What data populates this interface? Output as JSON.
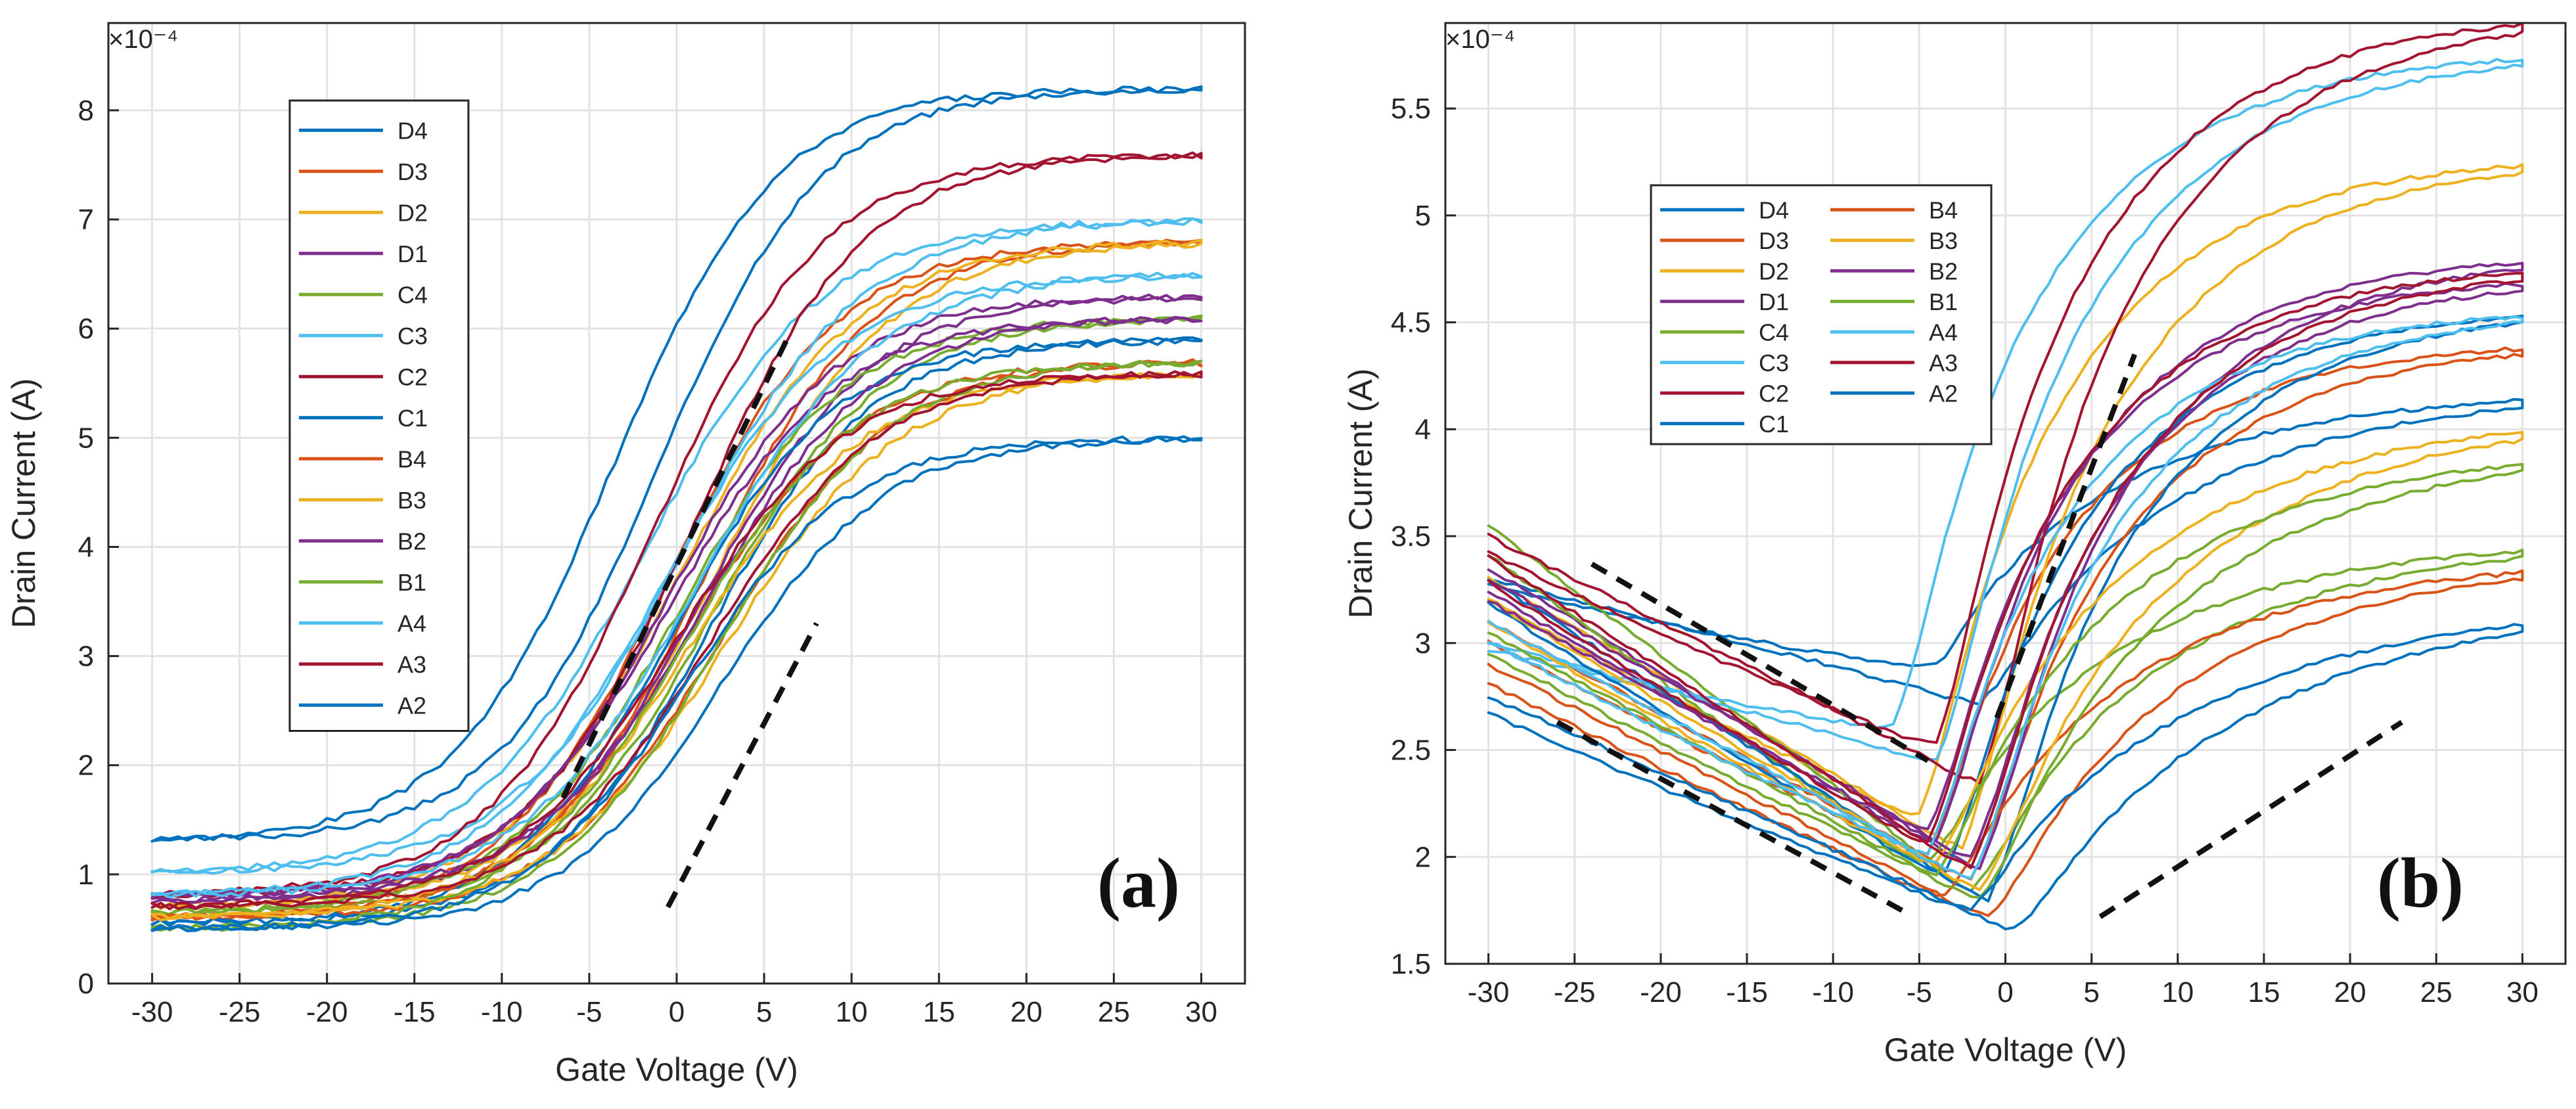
{
  "colors": [
    "#0072BD",
    "#D95319",
    "#EDB120",
    "#7E2F8E",
    "#77AC30",
    "#4DBEEE",
    "#A2142F"
  ],
  "chart_data": [
    {
      "type": "line",
      "panel_label": "(a)",
      "xlabel": "Gate Voltage (V)",
      "ylabel": "Drain Current (A)",
      "exponent": "×10⁻⁴",
      "xlim": [
        -32.5,
        32.5
      ],
      "ylim": [
        0,
        8.8
      ],
      "xticks": [
        -30,
        -25,
        -20,
        -15,
        -10,
        -5,
        0,
        5,
        10,
        15,
        20,
        25,
        30
      ],
      "yticks": [
        0,
        1,
        2,
        3,
        4,
        5,
        6,
        7,
        8
      ],
      "grid": true,
      "legend_position": "top-left",
      "legend_columns": 1,
      "series": [
        {
          "name": "D4",
          "lo": 1.3,
          "hi": 8.2,
          "vm": -1,
          "w": 4.6,
          "d": 2.6
        },
        {
          "name": "D3",
          "lo": 0.6,
          "hi": 6.8,
          "vm": 1.5,
          "w": 4.8,
          "d": 2.0
        },
        {
          "name": "D2",
          "lo": 0.7,
          "hi": 6.8,
          "vm": 2.2,
          "w": 5.0,
          "d": 2.0
        },
        {
          "name": "D1",
          "lo": 0.75,
          "hi": 6.3,
          "vm": 1.5,
          "w": 4.8,
          "d": 2.0
        },
        {
          "name": "C4",
          "lo": 0.65,
          "hi": 6.1,
          "vm": 2.0,
          "w": 4.8,
          "d": 2.0
        },
        {
          "name": "C3",
          "lo": 1.0,
          "hi": 7.0,
          "vm": 0.5,
          "w": 5.0,
          "d": 2.2
        },
        {
          "name": "C2",
          "lo": 0.8,
          "hi": 7.6,
          "vm": 1.0,
          "w": 4.8,
          "d": 2.2
        },
        {
          "name": "C1",
          "lo": 0.55,
          "hi": 5.9,
          "vm": 1.8,
          "w": 4.6,
          "d": 2.0
        },
        {
          "name": "B4",
          "lo": 0.6,
          "hi": 5.7,
          "vm": 2.5,
          "w": 4.8,
          "d": 2.0
        },
        {
          "name": "B3",
          "lo": 0.6,
          "hi": 5.6,
          "vm": 2.8,
          "w": 5.0,
          "d": 2.0
        },
        {
          "name": "B2",
          "lo": 0.8,
          "hi": 6.1,
          "vm": 1.6,
          "w": 4.8,
          "d": 2.0
        },
        {
          "name": "B1",
          "lo": 0.5,
          "hi": 5.7,
          "vm": 2.4,
          "w": 4.8,
          "d": 2.0
        },
        {
          "name": "A4",
          "lo": 0.8,
          "hi": 6.5,
          "vm": 1.2,
          "w": 5.0,
          "d": 2.0
        },
        {
          "name": "A3",
          "lo": 0.7,
          "hi": 5.6,
          "vm": 2.0,
          "w": 4.8,
          "d": 2.0
        },
        {
          "name": "A2",
          "lo": 0.5,
          "hi": 5.0,
          "vm": 2.6,
          "w": 4.6,
          "d": 2.0
        }
      ],
      "guide_lines": [
        {
          "x1": -6.5,
          "y1": 1.7,
          "x2": 6.3,
          "y2": 5.9
        },
        {
          "x1": -0.5,
          "y1": 0.7,
          "x2": 8.0,
          "y2": 3.3
        }
      ]
    },
    {
      "type": "line",
      "panel_label": "(b)",
      "xlabel": "Gate Voltage (V)",
      "ylabel": "Drain Current (A)",
      "exponent": "×10⁻⁴",
      "xlim": [
        -32.5,
        32.5
      ],
      "ylim": [
        1.5,
        5.9
      ],
      "xticks": [
        -30,
        -25,
        -20,
        -15,
        -10,
        -5,
        0,
        5,
        10,
        15,
        20,
        25,
        30
      ],
      "yticks": [
        1.5,
        2,
        2.5,
        3,
        3.5,
        4,
        4.5,
        5,
        5.5
      ],
      "grid": true,
      "legend_position": "top-left",
      "legend_columns": 2,
      "series": [
        {
          "name": "D4",
          "left": 3.3,
          "right": 4.1,
          "vmin": -1.5,
          "ymin": 2.72,
          "w": 5,
          "d": 0.22
        },
        {
          "name": "D3",
          "left": 3.1,
          "right": 4.35,
          "vmin": -2,
          "ymin": 1.9,
          "w": 4,
          "d": 0.15
        },
        {
          "name": "D2",
          "left": 3.3,
          "right": 5.2,
          "vmin": -2.5,
          "ymin": 2.05,
          "w": 4,
          "d": 0.18
        },
        {
          "name": "D1",
          "left": 3.35,
          "right": 4.75,
          "vmin": -1.5,
          "ymin": 1.95,
          "w": 4,
          "d": 0.15
        },
        {
          "name": "C4",
          "left": 3.55,
          "right": 3.4,
          "vmin": -2,
          "ymin": 1.85,
          "w": 5,
          "d": 0.15
        },
        {
          "name": "C3",
          "left": 3.0,
          "right": 5.7,
          "vmin": -4,
          "ymin": 2.45,
          "w": 4,
          "d": 0.2
        },
        {
          "name": "C2",
          "left": 3.5,
          "right": 5.85,
          "vmin": -1.5,
          "ymin": 2.35,
          "w": 4,
          "d": 0.22
        },
        {
          "name": "C1",
          "left": 3.3,
          "right": 4.5,
          "vmin": -1,
          "ymin": 1.8,
          "w": 4,
          "d": 0.15
        },
        {
          "name": "B4",
          "left": 2.9,
          "right": 3.3,
          "vmin": -1,
          "ymin": 1.72,
          "w": 5,
          "d": 0.12
        },
        {
          "name": "B3",
          "left": 3.2,
          "right": 3.95,
          "vmin": -1.5,
          "ymin": 1.85,
          "w": 5,
          "d": 0.15
        },
        {
          "name": "B2",
          "left": 3.3,
          "right": 4.65,
          "vmin": -2,
          "ymin": 2.0,
          "w": 4,
          "d": 0.15
        },
        {
          "name": "B1",
          "left": 3.05,
          "right": 3.8,
          "vmin": -1.5,
          "ymin": 1.8,
          "w": 5,
          "d": 0.15
        },
        {
          "name": "A4",
          "left": 3.1,
          "right": 4.5,
          "vmin": -2,
          "ymin": 1.9,
          "w": 4,
          "d": 0.15
        },
        {
          "name": "A3",
          "left": 3.4,
          "right": 4.7,
          "vmin": -2,
          "ymin": 1.95,
          "w": 4,
          "d": 0.15
        },
        {
          "name": "A2",
          "left": 2.75,
          "right": 3.05,
          "vmin": 0.5,
          "ymin": 1.66,
          "w": 6,
          "d": 0.12
        }
      ],
      "guide_lines": [
        {
          "x1": -24,
          "y1": 3.37,
          "x2": -4.5,
          "y2": 2.45
        },
        {
          "x1": -26,
          "y1": 2.63,
          "x2": -6,
          "y2": 1.75
        },
        {
          "x1": -0.5,
          "y1": 2.65,
          "x2": 7.5,
          "y2": 4.35
        },
        {
          "x1": 5.5,
          "y1": 1.72,
          "x2": 23,
          "y2": 2.63
        }
      ]
    }
  ]
}
